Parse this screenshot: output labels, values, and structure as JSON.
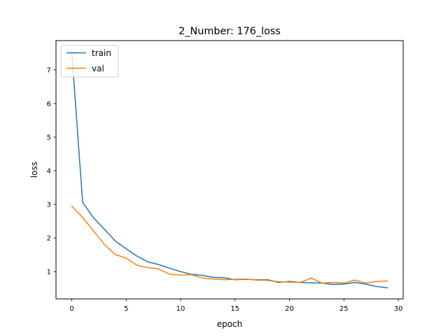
{
  "chart_data": {
    "type": "line",
    "title": "2_Number: 176_loss",
    "xlabel": "epoch",
    "ylabel": "loss",
    "xlim": [
      -1.45,
      30.45
    ],
    "ylim": [
      0.19,
      7.87
    ],
    "xticks": [
      0,
      5,
      10,
      15,
      20,
      25,
      30
    ],
    "yticks": [
      1,
      2,
      3,
      4,
      5,
      6,
      7
    ],
    "grid": false,
    "legend_position": "top-left",
    "x": [
      0,
      1,
      2,
      3,
      4,
      5,
      6,
      7,
      8,
      9,
      10,
      11,
      12,
      13,
      14,
      15,
      16,
      17,
      18,
      19,
      20,
      21,
      22,
      23,
      24,
      25,
      26,
      27,
      28,
      29
    ],
    "series": [
      {
        "name": "train",
        "color": "#1f77b4",
        "values": [
          7.52,
          3.06,
          2.6,
          2.26,
          1.91,
          1.68,
          1.46,
          1.29,
          1.21,
          1.1,
          1.0,
          0.92,
          0.89,
          0.83,
          0.82,
          0.76,
          0.77,
          0.76,
          0.76,
          0.68,
          0.71,
          0.68,
          0.67,
          0.66,
          0.62,
          0.63,
          0.68,
          0.63,
          0.56,
          0.52
        ]
      },
      {
        "name": "val",
        "color": "#ff7f0e",
        "values": [
          2.95,
          2.61,
          2.21,
          1.81,
          1.51,
          1.4,
          1.19,
          1.12,
          1.08,
          0.92,
          0.9,
          0.91,
          0.81,
          0.78,
          0.76,
          0.77,
          0.78,
          0.75,
          0.74,
          0.7,
          0.69,
          0.68,
          0.81,
          0.66,
          0.68,
          0.66,
          0.75,
          0.66,
          0.71,
          0.72
        ]
      }
    ]
  }
}
